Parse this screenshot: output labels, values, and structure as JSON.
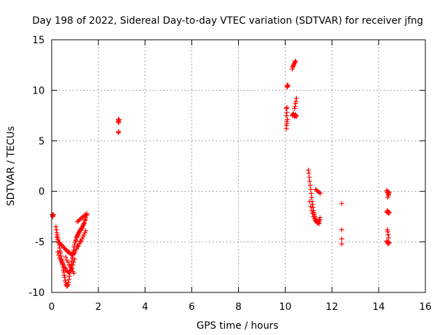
{
  "chart_data": {
    "type": "scatter",
    "title": "Day 198 of 2022, Sidereal Day-to-day VTEC variation (SDTVAR) for receiver jfng",
    "xlabel": "GPS time / hours",
    "ylabel": "SDTVAR / TECUs",
    "xlim": [
      0,
      16
    ],
    "ylim": [
      -10,
      15
    ],
    "xticks": [
      0,
      2,
      4,
      6,
      8,
      10,
      12,
      14,
      16
    ],
    "yticks": [
      -10,
      -5,
      0,
      5,
      10,
      15
    ],
    "grid": true,
    "marker": "+",
    "color": "#ff0000",
    "series": [
      {
        "name": "SDTVAR",
        "x": [
          0.02,
          0.04,
          0.06,
          0.08,
          0.18,
          0.2,
          0.22,
          0.24,
          0.26,
          0.28,
          0.3,
          0.32,
          0.34,
          0.36,
          0.38,
          0.4,
          0.42,
          0.44,
          0.46,
          0.48,
          0.5,
          0.52,
          0.54,
          0.56,
          0.58,
          0.6,
          0.62,
          0.64,
          0.66,
          0.68,
          0.7,
          0.72,
          0.74,
          0.76,
          0.78,
          0.8,
          0.82,
          0.84,
          0.86,
          0.88,
          0.9,
          0.92,
          0.94,
          0.96,
          0.98,
          1.0,
          1.02,
          1.04,
          1.06,
          1.08,
          1.1,
          1.12,
          1.14,
          1.16,
          1.18,
          1.2,
          1.22,
          1.24,
          1.26,
          1.28,
          1.3,
          1.32,
          1.34,
          1.36,
          1.38,
          1.4,
          1.42,
          1.44,
          1.46,
          1.48,
          1.5,
          0.22,
          0.26,
          0.3,
          0.34,
          0.38,
          0.42,
          0.46,
          0.5,
          0.54,
          0.58,
          0.62,
          0.66,
          0.7,
          0.74,
          0.78,
          0.82,
          0.86,
          0.9,
          0.94,
          0.98,
          1.02,
          1.06,
          1.1,
          1.14,
          1.18,
          1.22,
          1.26,
          1.3,
          1.34,
          1.38,
          1.42,
          1.46,
          0.26,
          0.3,
          0.34,
          0.38,
          0.42,
          0.46,
          0.5,
          0.54,
          0.58,
          0.62,
          0.66,
          0.7,
          0.74,
          0.78,
          0.82,
          0.86,
          0.9,
          0.94,
          0.98,
          0.6,
          0.65,
          0.7,
          0.75,
          0.8,
          0.85,
          0.9,
          0.95,
          1.1,
          1.15,
          1.2,
          1.25,
          1.3,
          1.35,
          1.4,
          1.45,
          1.5,
          2.85,
          2.85,
          2.87,
          2.87,
          2.89,
          2.85,
          2.87,
          10.05,
          10.05,
          10.07,
          10.07,
          10.09,
          10.05,
          10.07,
          10.05,
          10.07,
          10.08,
          10.1,
          10.12,
          10.08,
          10.3,
          10.32,
          10.34,
          10.36,
          10.38,
          10.4,
          10.42,
          10.44,
          10.3,
          10.32,
          10.34,
          10.36,
          10.38,
          10.4,
          10.42,
          10.44,
          10.46,
          10.48,
          10.4,
          10.42,
          10.44,
          10.46,
          10.48,
          10.99,
          11.01,
          11.03,
          11.05,
          11.07,
          11.09,
          11.11,
          11.13,
          11.15,
          11.17,
          11.19,
          11.21,
          11.23,
          11.25,
          11.27,
          11.29,
          11.31,
          11.33,
          11.35,
          11.37,
          11.39,
          11.41,
          11.43,
          11.45,
          11.47,
          11.49,
          11.05,
          11.09,
          11.13,
          11.17,
          11.21,
          11.25,
          11.29,
          11.33,
          11.37,
          11.41,
          11.45,
          11.3,
          11.35,
          11.4,
          11.45,
          11.5,
          12.42,
          12.42,
          12.42,
          12.42,
          14.35,
          14.37,
          14.39,
          14.41,
          14.43,
          14.45,
          14.35,
          14.37,
          14.39,
          14.41,
          14.43,
          14.45,
          14.37,
          14.39,
          14.41,
          14.43,
          14.35,
          14.37,
          14.39,
          14.41,
          14.43,
          14.45,
          14.39,
          14.41
        ],
        "y": [
          -2.3,
          -2.5,
          -2.4,
          -2.3,
          -3.5,
          -3.8,
          -4.1,
          -4.3,
          -4.6,
          -4.8,
          -5.1,
          -5.3,
          -5.6,
          -5.9,
          -6.1,
          -6.4,
          -6.7,
          -6.9,
          -7.2,
          -7.5,
          -7.8,
          -8.0,
          -8.3,
          -8.5,
          -8.8,
          -9.0,
          -9.2,
          -9.3,
          -9.4,
          -9.3,
          -9.2,
          -9.0,
          -8.7,
          -8.4,
          -8.1,
          -7.8,
          -7.5,
          -7.2,
          -6.9,
          -6.6,
          -6.3,
          -6.0,
          -5.8,
          -5.5,
          -5.3,
          -5.1,
          -4.9,
          -4.8,
          -4.6,
          -4.5,
          -4.4,
          -4.3,
          -4.2,
          -4.1,
          -4.0,
          -3.9,
          -3.9,
          -3.8,
          -3.7,
          -3.7,
          -3.6,
          -3.5,
          -3.4,
          -3.3,
          -3.2,
          -3.1,
          -2.9,
          -2.8,
          -2.6,
          -2.4,
          -2.3,
          -4.5,
          -4.8,
          -5.0,
          -5.1,
          -5.2,
          -5.3,
          -5.4,
          -5.5,
          -5.6,
          -5.7,
          -5.8,
          -5.9,
          -6.0,
          -6.0,
          -6.1,
          -6.2,
          -6.3,
          -6.3,
          -6.2,
          -6.1,
          -5.9,
          -5.7,
          -5.5,
          -5.4,
          -5.2,
          -5.0,
          -4.9,
          -4.7,
          -4.5,
          -4.3,
          -4.1,
          -3.9,
          -6.0,
          -6.3,
          -6.6,
          -6.8,
          -7.0,
          -7.1,
          -7.3,
          -7.5,
          -7.6,
          -7.8,
          -7.9,
          -8.0,
          -8.0,
          -7.9,
          -7.8,
          -7.6,
          -7.3,
          -7.0,
          -6.7,
          -6.5,
          -6.8,
          -7.0,
          -7.3,
          -7.5,
          -7.7,
          -7.9,
          -8.1,
          -3.0,
          -2.9,
          -2.8,
          -2.7,
          -2.6,
          -2.5,
          -2.4,
          -2.3,
          -2.2,
          6.9,
          7.1,
          6.8,
          7.0,
          7.1,
          5.8,
          5.9,
          6.2,
          6.5,
          6.7,
          6.9,
          7.1,
          7.5,
          7.8,
          8.2,
          8.3,
          10.3,
          10.4,
          10.5,
          10.5,
          12.1,
          12.3,
          12.4,
          12.5,
          12.6,
          12.7,
          12.8,
          12.9,
          7.5,
          7.6,
          7.7,
          7.6,
          7.5,
          7.4,
          7.5,
          7.6,
          7.5,
          7.4,
          8.2,
          8.4,
          8.7,
          8.9,
          9.2,
          2.1,
          1.8,
          1.4,
          1.0,
          0.6,
          0.2,
          -0.2,
          -0.6,
          -1.0,
          -1.3,
          -1.6,
          -1.9,
          -2.1,
          -2.3,
          -2.5,
          -2.7,
          -2.8,
          -2.9,
          -3.0,
          -3.1,
          -3.1,
          -3.1,
          -3.0,
          -2.9,
          -2.8,
          -2.6,
          -1.0,
          -1.5,
          -1.9,
          -2.2,
          -2.5,
          -2.7,
          -2.9,
          -3.0,
          -3.1,
          -3.1,
          -3.2,
          0.2,
          0.1,
          0.0,
          -0.1,
          -0.2,
          -1.2,
          -3.8,
          -4.7,
          -5.2,
          0.1,
          -0.1,
          0.0,
          -0.2,
          -0.3,
          -0.1,
          -2.0,
          -2.1,
          -1.9,
          -2.0,
          -2.2,
          -2.1,
          -3.8,
          -4.0,
          -4.3,
          -4.6,
          -4.9,
          -5.0,
          -5.1,
          -5.2,
          -5.0,
          -5.1,
          -0.6,
          -0.4
        ]
      }
    ]
  }
}
